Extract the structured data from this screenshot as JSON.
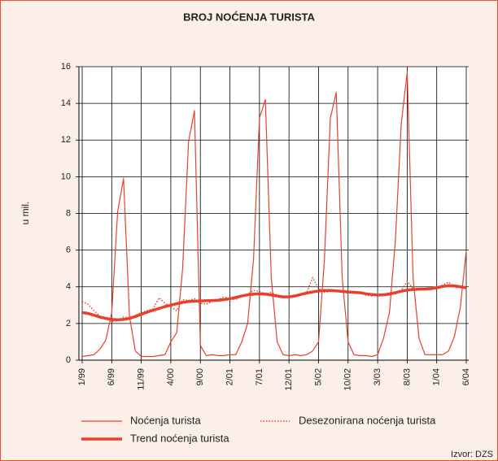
{
  "chart_data": {
    "type": "line",
    "title": "BROJ NOĆENJA TURISTA",
    "y_label": "u mil.",
    "source": "Izvor: DZS",
    "categories": [
      "1/99",
      null,
      null,
      null,
      null,
      "6/99",
      null,
      null,
      null,
      null,
      "11/99",
      null,
      null,
      null,
      null,
      "4/00",
      null,
      null,
      null,
      null,
      "9/00",
      null,
      null,
      null,
      null,
      "2/01",
      null,
      null,
      null,
      null,
      "7/01",
      null,
      null,
      null,
      null,
      "12/01",
      null,
      null,
      null,
      null,
      "5/02",
      null,
      null,
      null,
      null,
      "10/02",
      null,
      null,
      null,
      null,
      "3/03",
      null,
      null,
      null,
      null,
      "8/03",
      null,
      null,
      null,
      null,
      "1/04",
      null,
      null,
      null,
      null,
      "6/04"
    ],
    "ylim": [
      0,
      16
    ],
    "yticks": [
      0,
      2,
      4,
      6,
      8,
      10,
      12,
      14,
      16
    ],
    "grid": true,
    "series": [
      {
        "name": "Noćenja turista",
        "color": "#e8402a",
        "style": "thin",
        "values": [
          0.2,
          0.25,
          0.3,
          0.6,
          1.1,
          2.6,
          8.1,
          9.9,
          2.4,
          0.5,
          0.2,
          0.2,
          0.2,
          0.25,
          0.3,
          1.0,
          1.5,
          5.0,
          11.9,
          13.6,
          0.8,
          0.25,
          0.3,
          0.25,
          0.25,
          0.3,
          0.3,
          1.0,
          2.0,
          5.5,
          13.2,
          14.2,
          4.5,
          1.0,
          0.3,
          0.25,
          0.3,
          0.25,
          0.3,
          0.5,
          1.0,
          5.5,
          13.2,
          14.6,
          4.5,
          1.0,
          0.3,
          0.25,
          0.25,
          0.2,
          0.3,
          1.2,
          2.6,
          6.5,
          12.9,
          15.7,
          4.5,
          1.2,
          0.3,
          0.3,
          0.3,
          0.3,
          0.5,
          1.3,
          2.9,
          6.0
        ]
      },
      {
        "name": "Desezonirana noćenja turista",
        "color": "#e8402a",
        "style": "dotted",
        "values": [
          3.2,
          3.05,
          2.7,
          2.4,
          2.25,
          2.1,
          2.15,
          2.35,
          2.3,
          2.45,
          2.6,
          2.7,
          2.8,
          3.4,
          3.1,
          2.9,
          2.7,
          3.3,
          3.25,
          3.35,
          3.1,
          3.05,
          3.2,
          3.3,
          3.45,
          3.35,
          3.3,
          3.5,
          3.6,
          3.8,
          3.75,
          3.6,
          3.7,
          3.55,
          3.4,
          3.5,
          3.45,
          3.6,
          3.7,
          4.5,
          3.9,
          3.7,
          3.75,
          3.8,
          3.7,
          3.65,
          3.75,
          3.7,
          3.55,
          3.5,
          3.6,
          3.55,
          3.7,
          3.6,
          3.8,
          4.3,
          3.9,
          3.85,
          3.9,
          3.95,
          3.9,
          4.1,
          4.25,
          3.95,
          4.0,
          3.9
        ]
      },
      {
        "name": "Trend noćenja turista",
        "color": "#e8402a",
        "style": "thick",
        "values": [
          2.6,
          2.55,
          2.45,
          2.35,
          2.28,
          2.22,
          2.2,
          2.22,
          2.28,
          2.38,
          2.5,
          2.62,
          2.72,
          2.82,
          2.92,
          3.0,
          3.08,
          3.15,
          3.2,
          3.22,
          3.23,
          3.24,
          3.25,
          3.27,
          3.3,
          3.35,
          3.42,
          3.5,
          3.56,
          3.6,
          3.62,
          3.6,
          3.55,
          3.5,
          3.45,
          3.45,
          3.5,
          3.58,
          3.66,
          3.72,
          3.77,
          3.8,
          3.8,
          3.78,
          3.75,
          3.72,
          3.7,
          3.68,
          3.62,
          3.58,
          3.55,
          3.56,
          3.6,
          3.68,
          3.76,
          3.82,
          3.85,
          3.87,
          3.88,
          3.9,
          3.95,
          4.02,
          4.06,
          4.05,
          4.0,
          3.95
        ]
      }
    ]
  }
}
